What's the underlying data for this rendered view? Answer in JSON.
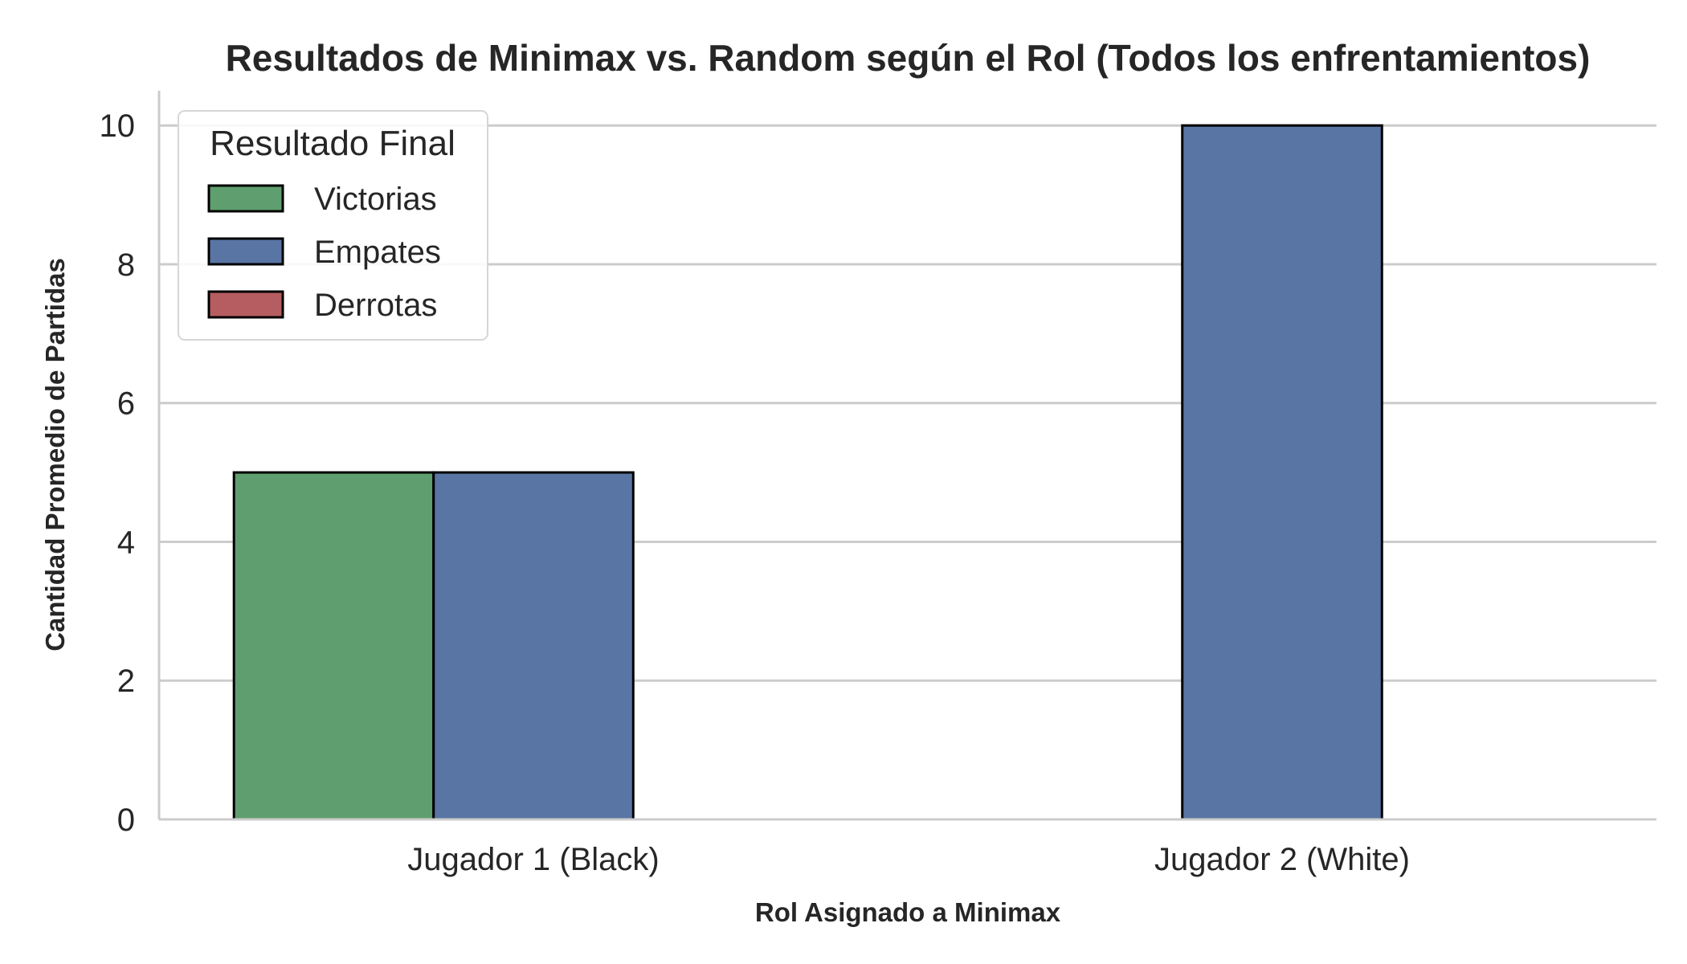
{
  "chart_data": {
    "type": "bar",
    "title": "Resultados de Minimax vs. Random según el Rol (Todos los enfrentamientos)",
    "xlabel": "Rol Asignado a Minimax",
    "ylabel": "Cantidad Promedio de Partidas",
    "categories": [
      "Jugador 1 (Black)",
      "Jugador 2 (White)"
    ],
    "series": [
      {
        "name": "Victorias",
        "values": [
          5,
          0
        ],
        "color": "#5f9e6e"
      },
      {
        "name": "Empates",
        "values": [
          5,
          10
        ],
        "color": "#5975a4"
      },
      {
        "name": "Derrotas",
        "values": [
          0,
          0
        ],
        "color": "#b55d60"
      }
    ],
    "ylim": [
      0,
      10.5
    ],
    "yticks": [
      0,
      2,
      4,
      6,
      8,
      10
    ],
    "grid": "horizontal",
    "legend": {
      "title": "Resultado Final",
      "placement": "top-left"
    }
  }
}
